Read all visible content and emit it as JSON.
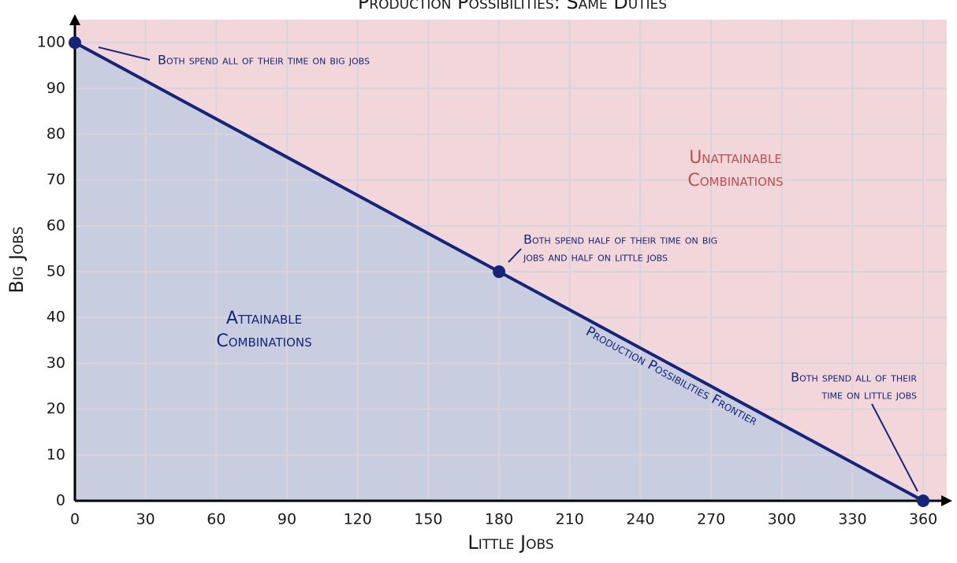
{
  "chart_data": {
    "type": "line",
    "title": "Production Possibilities: Same Duties",
    "x_label": "Little Jobs",
    "y_label": "Big Jobs",
    "x": [
      0,
      180,
      360
    ],
    "series": [
      {
        "name": "Production Possibilities Frontier",
        "color": "#16247a",
        "values": [
          100,
          50,
          0
        ]
      }
    ],
    "xlim": [
      0,
      370
    ],
    "ylim": [
      0,
      105
    ],
    "xticks": [
      0,
      30,
      60,
      90,
      120,
      150,
      180,
      210,
      240,
      270,
      300,
      330,
      360
    ],
    "yticks": [
      0,
      10,
      20,
      30,
      40,
      50,
      60,
      70,
      80,
      90,
      100
    ],
    "grid": true,
    "attainable_color": "#c9cde0",
    "unattainable_color": "#f1d7d9",
    "annotations": [
      {
        "text": [
          "Both spend all of their time on big jobs"
        ]
      },
      {
        "text": [
          "Both spend half of their time on big",
          "jobs and half on little jobs"
        ]
      },
      {
        "text": [
          "Both spend all of their",
          "time on little jobs"
        ]
      }
    ],
    "region_labels": [
      {
        "text": [
          "Unattainable",
          "Combinations"
        ],
        "color": "#c0504d"
      },
      {
        "text": [
          "Attainable",
          "Combinations"
        ],
        "color": "#16247a"
      }
    ]
  }
}
